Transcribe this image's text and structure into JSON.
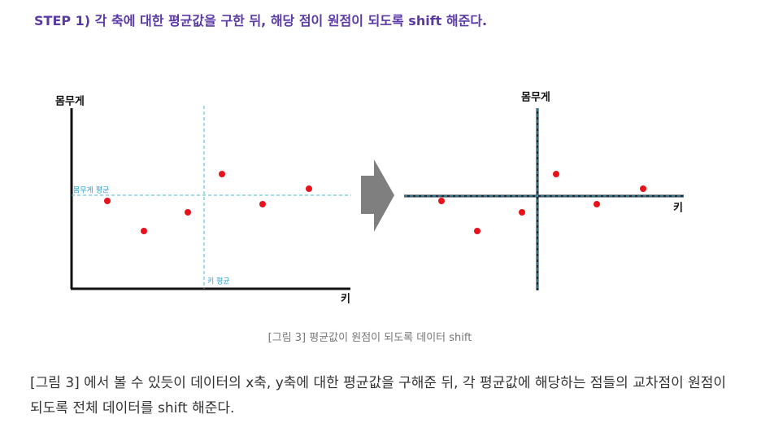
{
  "heading": "STEP 1) 각 축에 대한 평균값을 구한 뒤, 해당 점이 원점이 되도록 shift 해준다.",
  "left_diagram": {
    "y_axis_label": "몸무게",
    "x_axis_label": "키",
    "y_mean_label": "몸무게 평균",
    "x_mean_label": "키 평균"
  },
  "right_diagram": {
    "y_axis_label": "몸무게",
    "x_axis_label": "키"
  },
  "caption": "[그림 3] 평균값이 원점이 되도록 데이터 shift",
  "paragraph": "[그림 3] 에서 볼 수 있듯이 데이터의 x축, y축에 대한 평균값을 구해준 뒤, 각 평균값에 해당하는 점들의 교차점이 원점이 되도록 전체 데이터를 shift 해준다."
}
